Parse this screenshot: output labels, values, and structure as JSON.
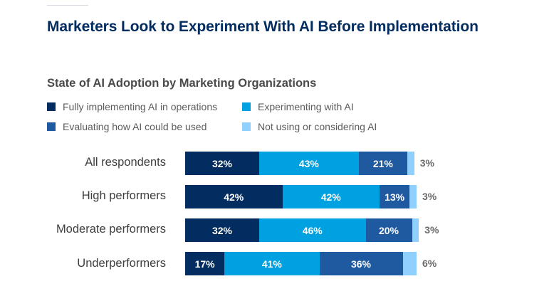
{
  "chart_data": {
    "type": "bar",
    "orientation": "horizontal",
    "stacked": true,
    "title": "Marketers Look to Experiment With AI Before Implementation",
    "subtitle": "State of AI Adoption by Marketing Organizations",
    "xlabel": "",
    "ylabel": "",
    "xlim": [
      0,
      100
    ],
    "grid": false,
    "legend_position": "top-left",
    "categories": [
      "All respondents",
      "High performers",
      "Moderate performers",
      "Underperformers"
    ],
    "series": [
      {
        "name": "Fully implementing AI in operations",
        "color": "#032d60",
        "values": [
          32,
          42,
          32,
          17
        ]
      },
      {
        "name": "Experimenting with AI",
        "color": "#00a1e0",
        "values": [
          43,
          42,
          46,
          41
        ]
      },
      {
        "name": "Evaluating how AI could be used",
        "color": "#1f5aa0",
        "values": [
          21,
          13,
          20,
          36
        ]
      },
      {
        "name": "Not using or considering AI",
        "color": "#90d0fe",
        "values": [
          3,
          3,
          3,
          6
        ]
      }
    ],
    "label_suffix": "%"
  },
  "legend": [
    {
      "label": "Fully implementing AI in operations",
      "color": "#032d60"
    },
    {
      "label": "Experimenting with AI",
      "color": "#00a1e0"
    },
    {
      "label": "Evaluating how AI could be used",
      "color": "#1f5aa0"
    },
    {
      "label": "Not using or considering AI",
      "color": "#90d0fe"
    }
  ]
}
